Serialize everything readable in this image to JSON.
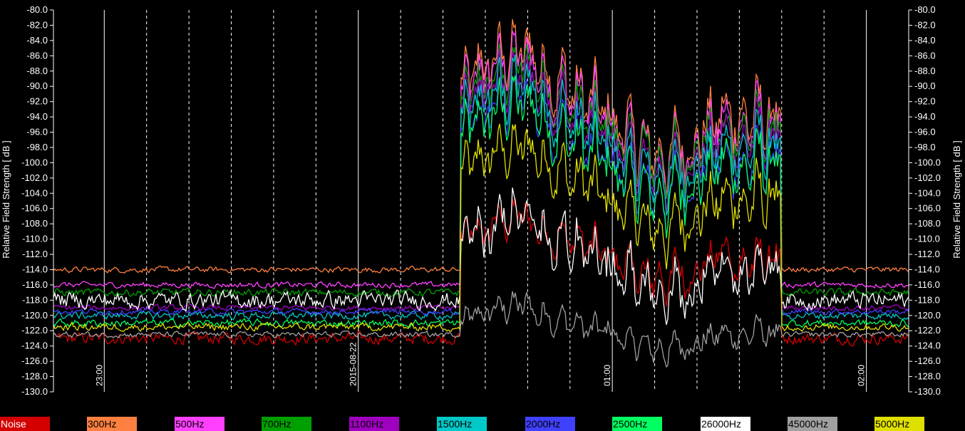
{
  "chart_data": {
    "type": "line",
    "ylabel": "Relative Field Strength [ dB ]",
    "ylabel_right": "Relative Field Strength [ dB ]",
    "ylim": [
      -130,
      -80
    ],
    "yticks": [
      -80.0,
      -82.0,
      -84.0,
      -86.0,
      -88.0,
      -90.0,
      -92.0,
      -94.0,
      -96.0,
      -98.0,
      -100.0,
      -102.0,
      -104.0,
      -106.0,
      -108.0,
      -110.0,
      -112.0,
      -114.0,
      -116.0,
      -118.0,
      -120.0,
      -122.0,
      -124.0,
      -126.0,
      -128.0,
      -130.0
    ],
    "ytick_labels": [
      "-80.0",
      "-82.0",
      "-84.0",
      "-86.0",
      "-88.0",
      "-90.0",
      "-92.0",
      "-94.0",
      "-96.0",
      "-98.0",
      "-100.0",
      "-102.0",
      "-104.0",
      "-106.0",
      "-108.0",
      "-110.0",
      "-112.0",
      "-114.0",
      "-116.0",
      "-118.0",
      "-120.0",
      "-122.0",
      "-124.0",
      "-126.0",
      "-128.0",
      "-130.0"
    ],
    "time_labels": [
      "23:00",
      "2015-08-22",
      "01:00",
      "02:00"
    ],
    "grid": true,
    "legend_position": "bottom",
    "burst_window": [
      "00:24",
      "01:40"
    ],
    "series": [
      {
        "name": "Noise",
        "color": "#d40000",
        "base": -123.0,
        "burst_mid": -112.0,
        "peak_offset": 7,
        "noise": 0.6
      },
      {
        "name": "300Hz",
        "color": "#ff8040",
        "base": -114.0,
        "burst_mid": -93.0,
        "peak_offset": 12,
        "noise": 0.3
      },
      {
        "name": "500Hz",
        "color": "#ff40ff",
        "base": -116.0,
        "burst_mid": -94.0,
        "peak_offset": 12,
        "noise": 0.3
      },
      {
        "name": "700Hz",
        "color": "#00a000",
        "base": -117.0,
        "burst_mid": -95.0,
        "peak_offset": 11,
        "noise": 0.4
      },
      {
        "name": "1100Hz",
        "color": "#a000c0",
        "base": -119.0,
        "burst_mid": -96.0,
        "peak_offset": 11,
        "noise": 0.3
      },
      {
        "name": "1500Hz",
        "color": "#00c8c8",
        "base": -120.0,
        "burst_mid": -97.0,
        "peak_offset": 11,
        "noise": 0.4
      },
      {
        "name": "2000Hz",
        "color": "#4040ff",
        "base": -119.5,
        "burst_mid": -99.0,
        "peak_offset": 11,
        "noise": 0.3
      },
      {
        "name": "2500Hz",
        "color": "#00ff60",
        "base": -121.0,
        "burst_mid": -99.5,
        "peak_offset": 11,
        "noise": 0.4
      },
      {
        "name": "26000Hz",
        "color": "#ffffff",
        "base": -118.0,
        "burst_mid": -113.0,
        "peak_offset": 9,
        "noise": 0.9
      },
      {
        "name": "45000Hz",
        "color": "#a0a0a0",
        "base": -122.5,
        "burst_mid": -122.0,
        "peak_offset": 5,
        "noise": 0.3
      },
      {
        "name": "5000Hz",
        "color": "#e0e000",
        "base": -121.5,
        "burst_mid": -104.0,
        "peak_offset": 10,
        "noise": 0.4
      }
    ]
  }
}
